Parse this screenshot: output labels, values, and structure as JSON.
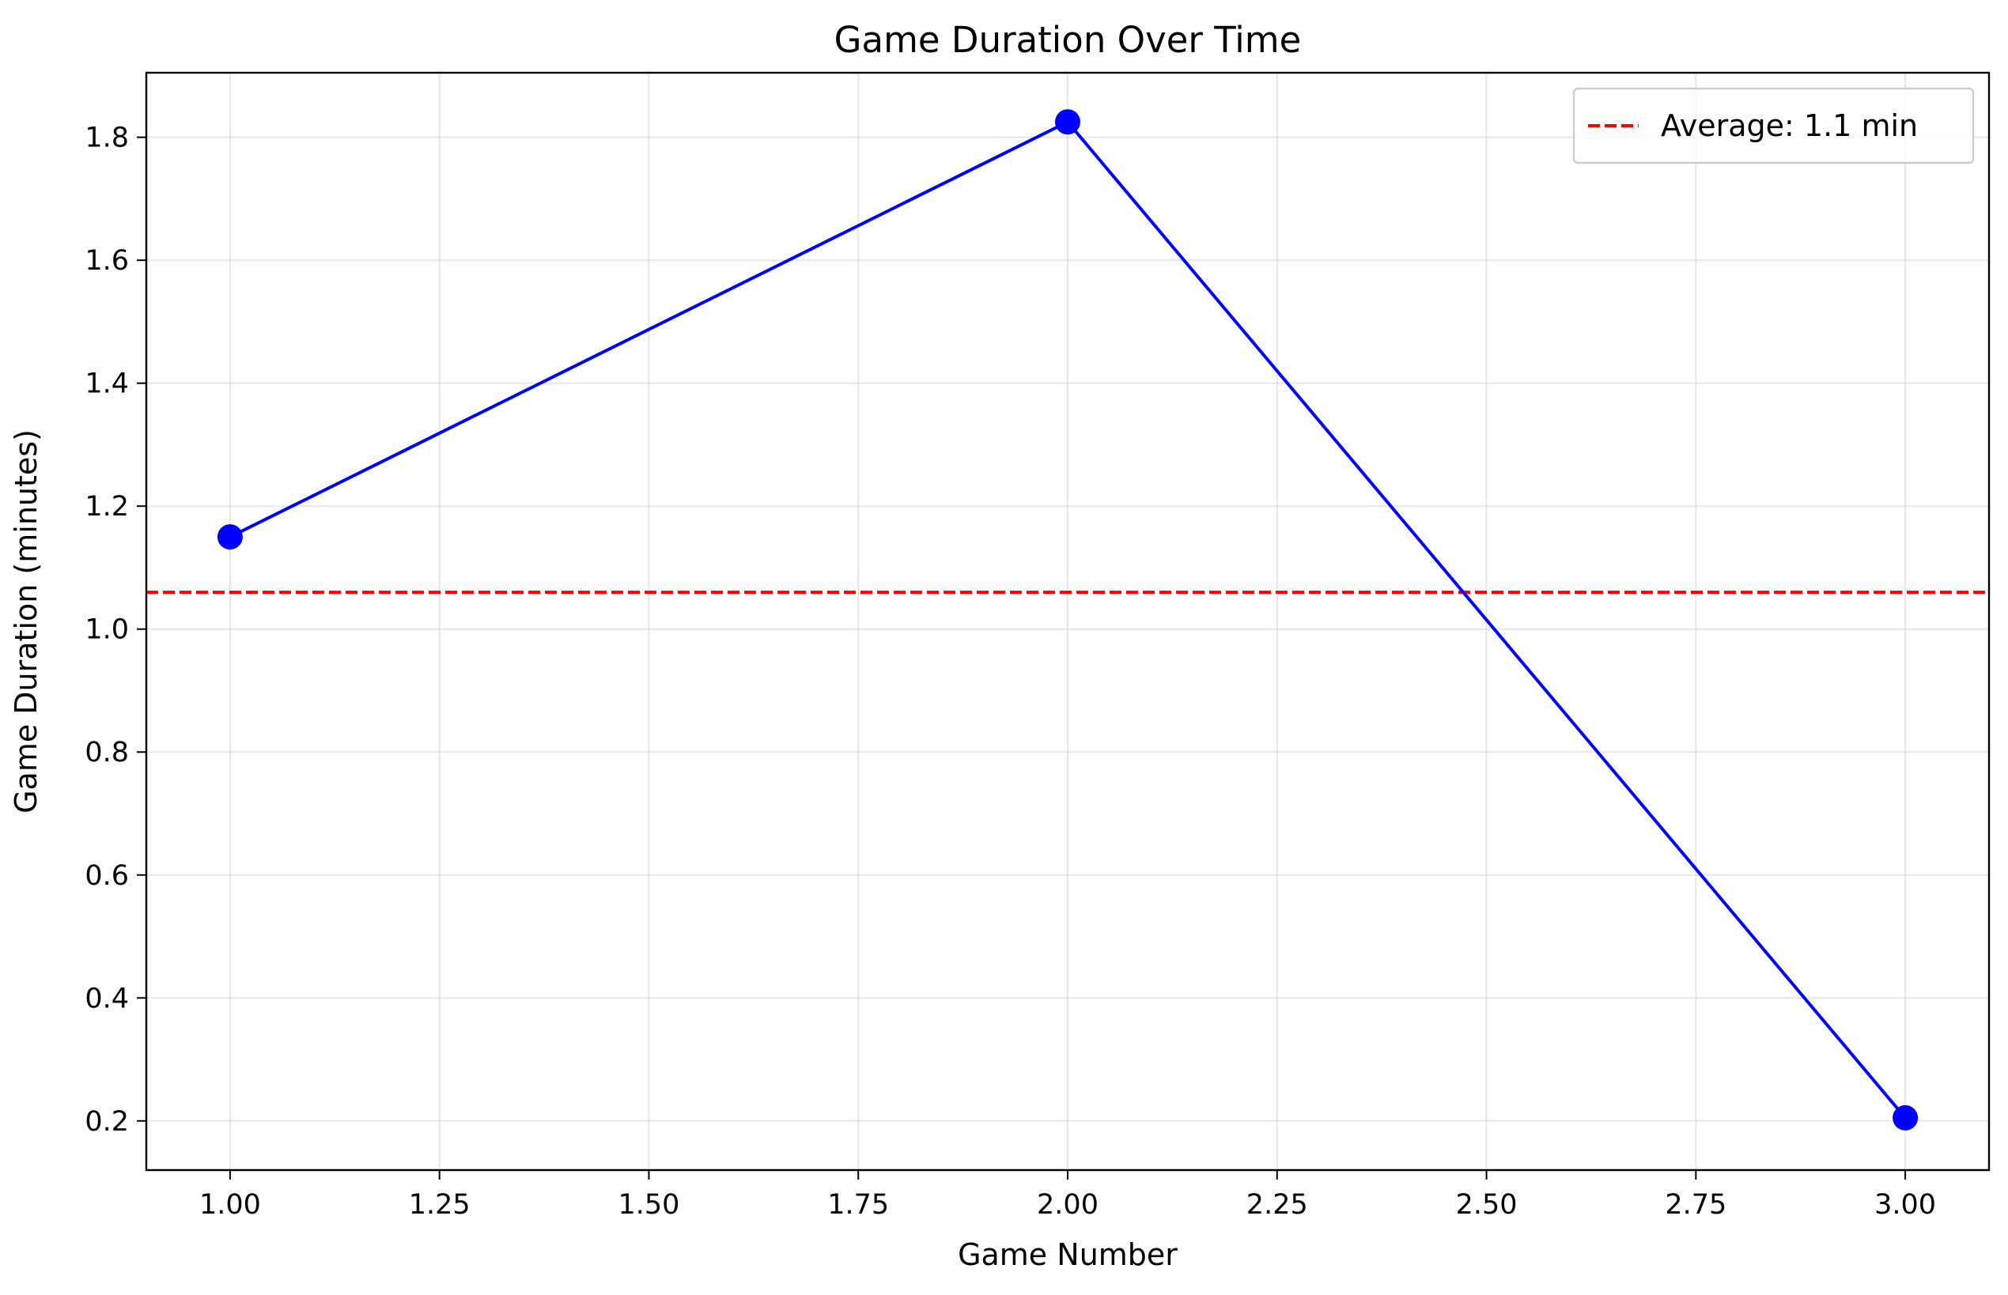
{
  "chart_data": {
    "type": "line",
    "title": "Game Duration Over Time",
    "xlabel": "Game Number",
    "ylabel": "Game Duration (minutes)",
    "xlim": [
      0.9,
      3.1
    ],
    "ylim": [
      0.12,
      1.905
    ],
    "x_ticks": [
      1.0,
      1.25,
      1.5,
      1.75,
      2.0,
      2.25,
      2.5,
      2.75,
      3.0
    ],
    "x_tick_labels": [
      "1.00",
      "1.25",
      "1.50",
      "1.75",
      "2.00",
      "2.25",
      "2.50",
      "2.75",
      "3.00"
    ],
    "y_ticks": [
      0.2,
      0.4,
      0.6,
      0.8,
      1.0,
      1.2,
      1.4,
      1.6,
      1.8
    ],
    "y_tick_labels": [
      "0.2",
      "0.4",
      "0.6",
      "0.8",
      "1.0",
      "1.2",
      "1.4",
      "1.6",
      "1.8"
    ],
    "grid": true,
    "legend_position": "top-right",
    "series": [
      {
        "x": [
          1,
          2,
          3
        ],
        "y": [
          1.15,
          1.825,
          0.205
        ],
        "color": "#0000ff",
        "marker": "circle"
      }
    ],
    "reference_lines": [
      {
        "orientation": "horizontal",
        "y": 1.06,
        "label": "Average: 1.1 min",
        "color": "#ff0000",
        "style": "dashed"
      }
    ]
  }
}
